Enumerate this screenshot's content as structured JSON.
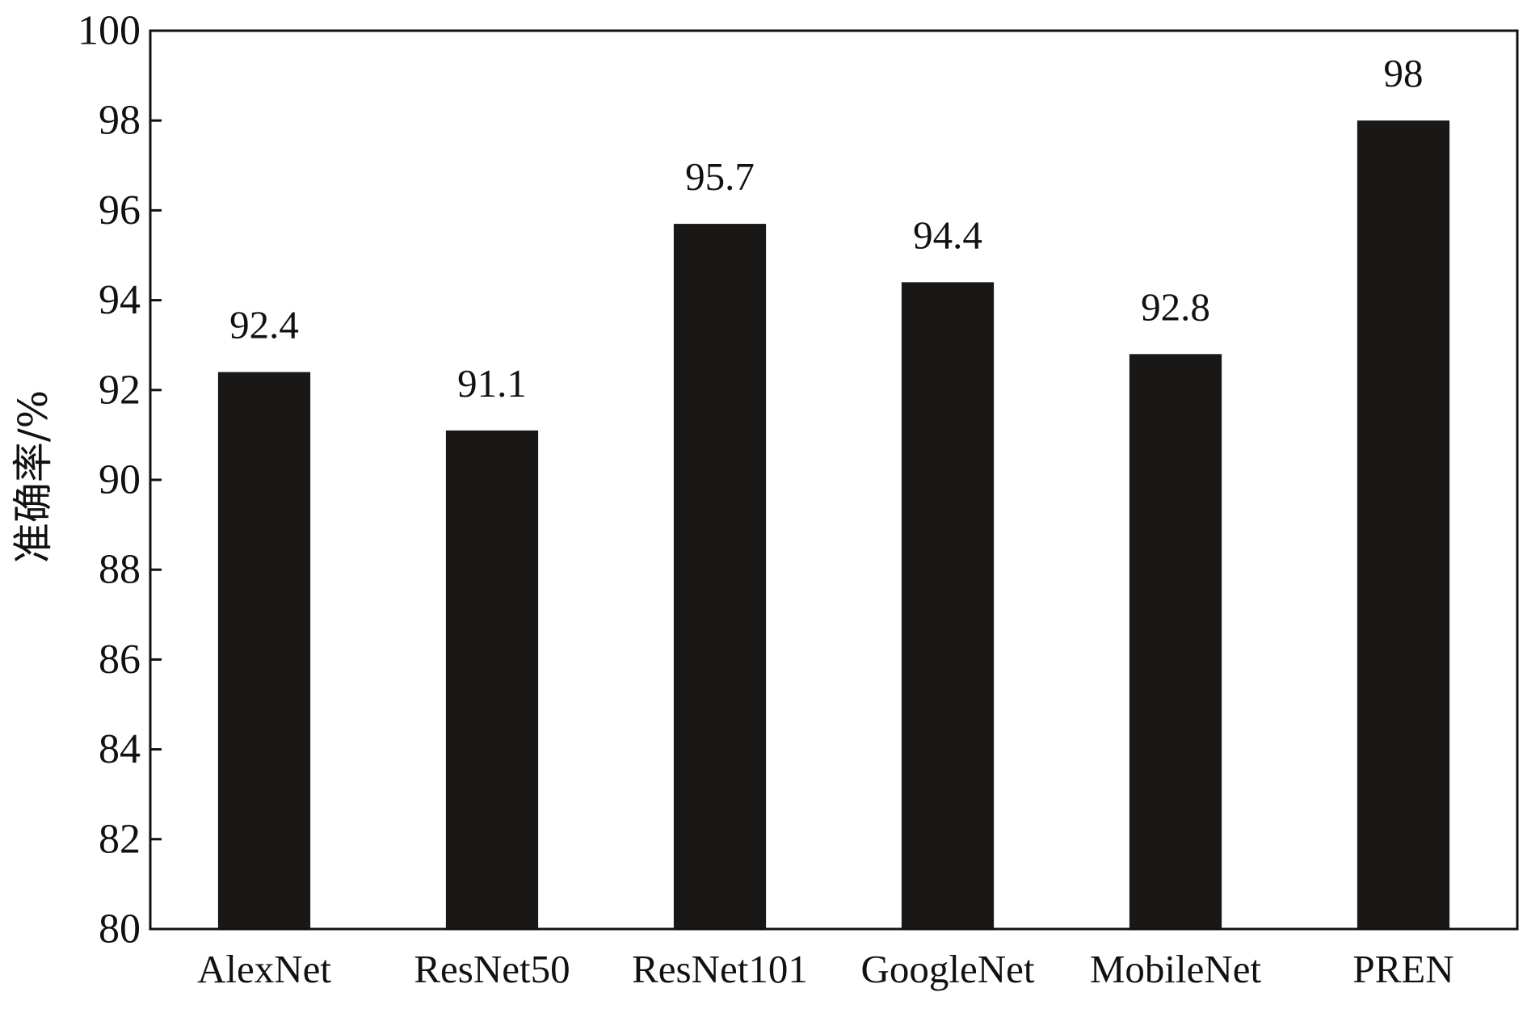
{
  "chart_data": {
    "type": "bar",
    "categories": [
      "AlexNet",
      "ResNet50",
      "ResNet101",
      "GoogleNet",
      "MobileNet",
      "PREN"
    ],
    "values": [
      92.4,
      91.1,
      95.7,
      94.4,
      92.8,
      98
    ],
    "data_labels": [
      "92.4",
      "91.1",
      "95.7",
      "94.4",
      "92.8",
      "98"
    ],
    "title": "",
    "xlabel": "",
    "ylabel": "准确率/%",
    "ylim": [
      80,
      100
    ],
    "yticks": [
      80,
      82,
      84,
      86,
      88,
      90,
      92,
      94,
      96,
      98,
      100
    ],
    "grid": false,
    "legend": "none",
    "bar_color": "#1a1816",
    "axis_color": "#111111"
  }
}
